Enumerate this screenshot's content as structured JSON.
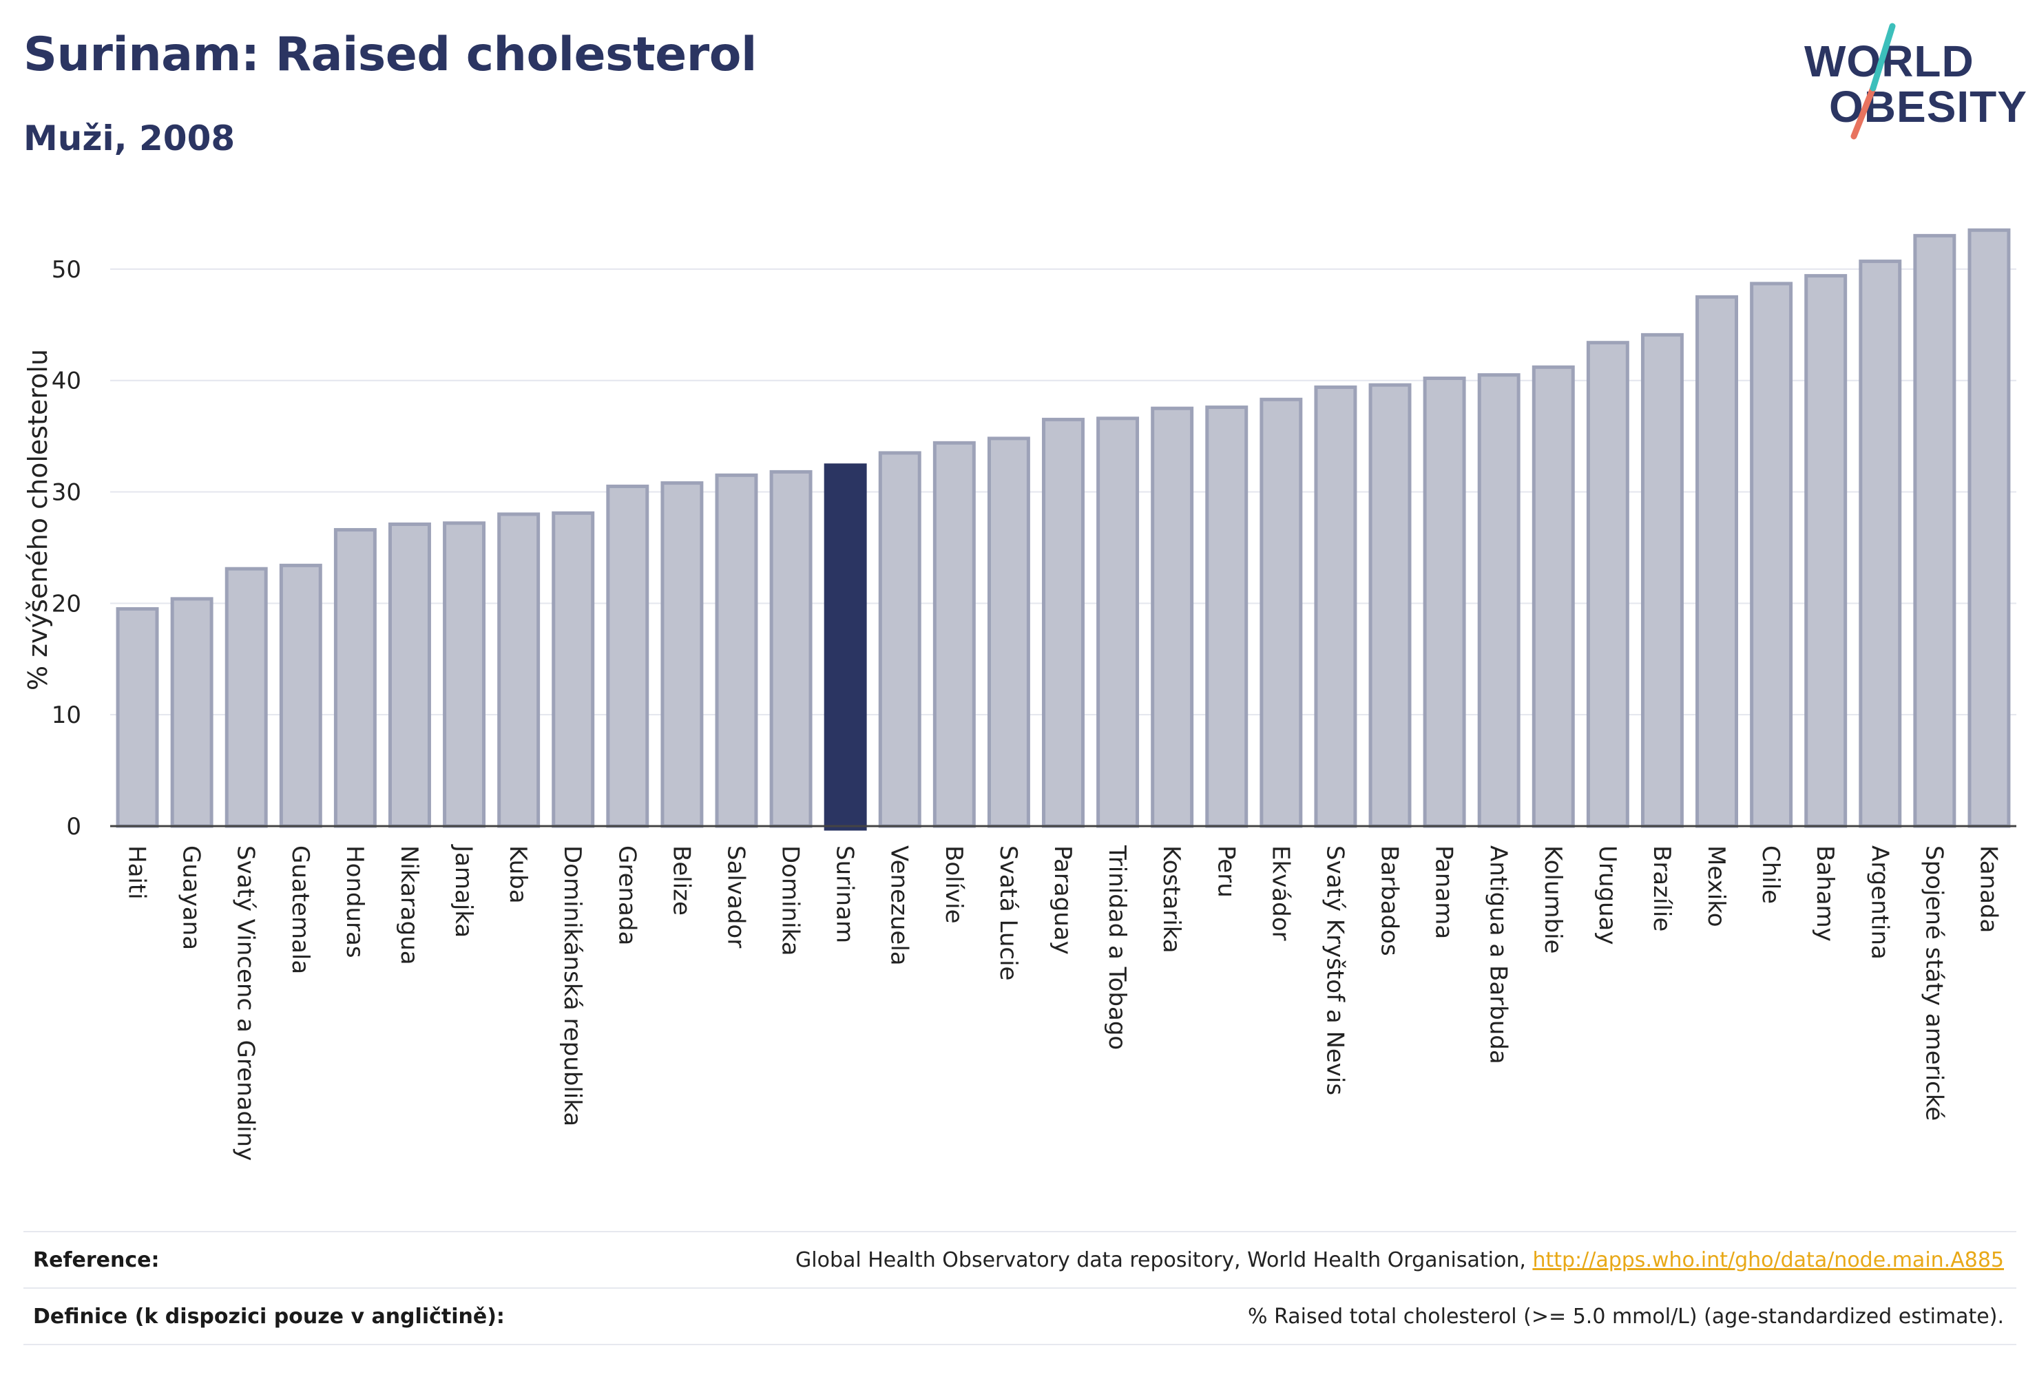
{
  "header": {
    "title": "Surinam: Raised cholesterol",
    "subtitle": "Muži, 2008"
  },
  "logo": {
    "line1": "WORLD",
    "line2": "OBESITY"
  },
  "chart_data": {
    "type": "bar",
    "ylabel": "% zvýšeného cholesterolu",
    "xlabel": "",
    "ylim": [
      0,
      55
    ],
    "yticks": [
      0,
      10,
      20,
      30,
      40,
      50
    ],
    "grid": true,
    "highlight": "Surinam",
    "colors": {
      "bar": "#bfc2cf",
      "bar_edge": "#9da2b8",
      "highlight": "#2b3562",
      "grid": "#e4e6ee"
    },
    "categories": [
      "Haiti",
      "Guayana",
      "Svatý Vincenc a Grenadiny",
      "Guatemala",
      "Honduras",
      "Nikaragua",
      "Jamajka",
      "Kuba",
      "Dominikánská republika",
      "Grenada",
      "Belize",
      "Salvador",
      "Dominika",
      "Surinam",
      "Venezuela",
      "Bolívie",
      "Svatá Lucie",
      "Paraguay",
      "Trinidad a Tobago",
      "Kostarika",
      "Peru",
      "Ekvádor",
      "Svatý Kryštof a Nevis",
      "Barbados",
      "Panama",
      "Antigua a Barbuda",
      "Kolumbie",
      "Uruguay",
      "Brazílie",
      "Mexiko",
      "Chile",
      "Bahamy",
      "Argentina",
      "Spojené státy americké",
      "Kanada"
    ],
    "values": [
      19.5,
      20.4,
      23.1,
      23.4,
      26.6,
      27.1,
      27.2,
      28.0,
      28.1,
      30.5,
      30.8,
      31.5,
      31.8,
      32.4,
      33.5,
      34.4,
      34.8,
      36.5,
      36.6,
      37.5,
      37.6,
      38.3,
      39.4,
      39.6,
      40.2,
      40.5,
      41.2,
      43.4,
      44.1,
      47.5,
      48.7,
      49.4,
      50.7,
      53.0,
      53.5
    ]
  },
  "footer": {
    "reference_label": "Reference:",
    "reference_text": "Global Health Observatory data repository, World Health Organisation, ",
    "reference_link": "http://apps.who.int/gho/data/node.main.A885",
    "definition_label": "Definice (k dispozici pouze v angličtině):",
    "definition_text": "% Raised total cholesterol (>= 5.0 mmol/L) (age-standardized estimate)."
  }
}
